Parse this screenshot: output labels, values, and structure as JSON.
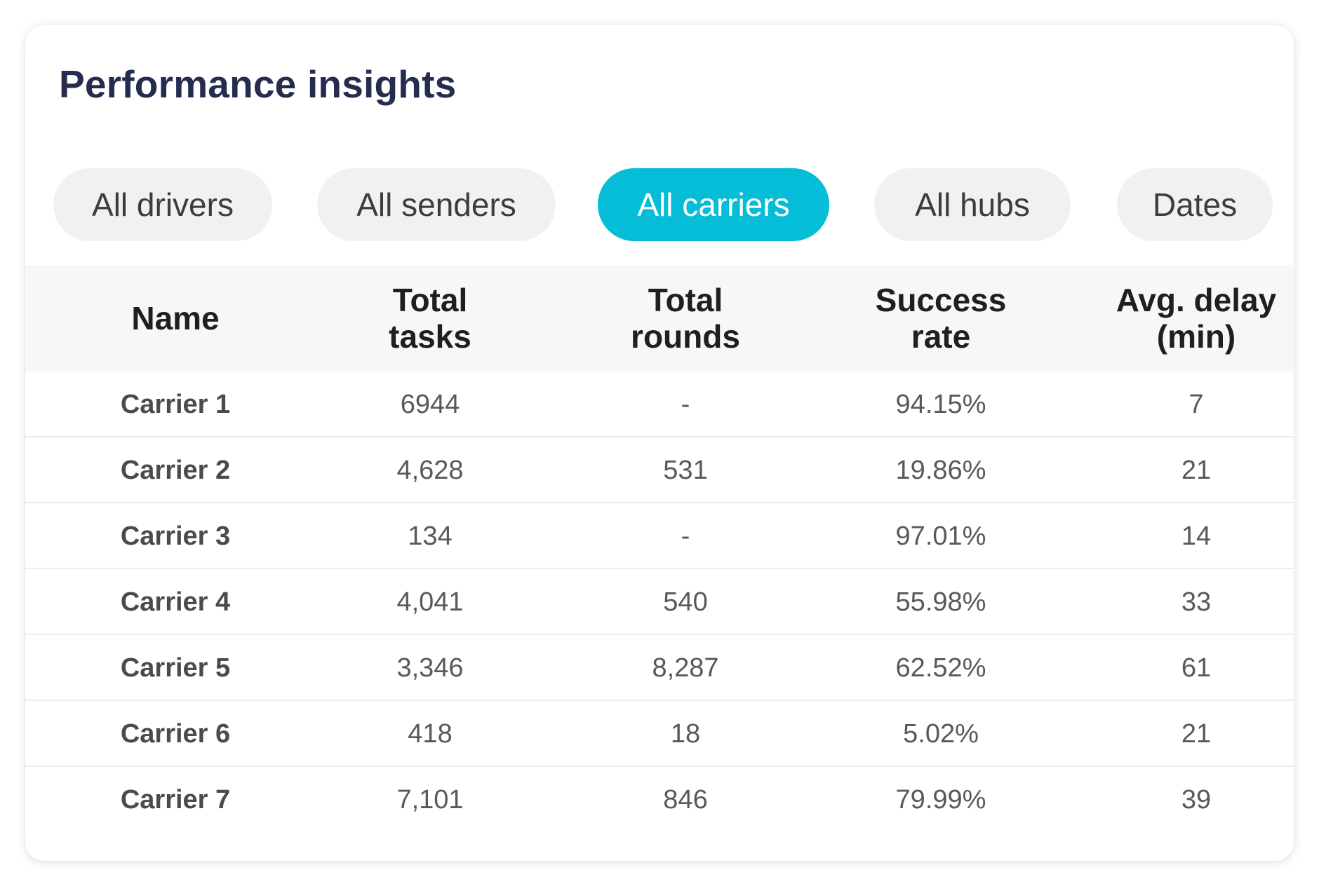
{
  "card": {
    "title": "Performance insights"
  },
  "filters": [
    {
      "label": "All drivers",
      "active": false
    },
    {
      "label": "All senders",
      "active": false
    },
    {
      "label": "All carriers",
      "active": true
    },
    {
      "label": "All hubs",
      "active": false
    },
    {
      "label": "Dates",
      "active": false
    }
  ],
  "table": {
    "headers": [
      {
        "line1": "Name",
        "line2": ""
      },
      {
        "line1": "Total",
        "line2": "tasks"
      },
      {
        "line1": "Total",
        "line2": "rounds"
      },
      {
        "line1": "Success",
        "line2": "rate"
      },
      {
        "line1": "Avg. delay",
        "line2": "(min)"
      }
    ],
    "rows": [
      [
        "Carrier 1",
        "6944",
        "-",
        "94.15%",
        "7"
      ],
      [
        "Carrier 2",
        "4,628",
        "531",
        "19.86%",
        "21"
      ],
      [
        "Carrier 3",
        "134",
        "-",
        "97.01%",
        "14"
      ],
      [
        "Carrier 4",
        "4,041",
        "540",
        "55.98%",
        "33"
      ],
      [
        "Carrier 5",
        "3,346",
        "8,287",
        "62.52%",
        "61"
      ],
      [
        "Carrier 6",
        "418",
        "18",
        "5.02%",
        "21"
      ],
      [
        "Carrier 7",
        "7,101",
        "846",
        "79.99%",
        "39"
      ]
    ]
  },
  "colors": {
    "title": "#252d4f",
    "accent": "#05bdd6",
    "pill_bg": "#f1f1f1",
    "header_bg": "#f7f7f7"
  }
}
